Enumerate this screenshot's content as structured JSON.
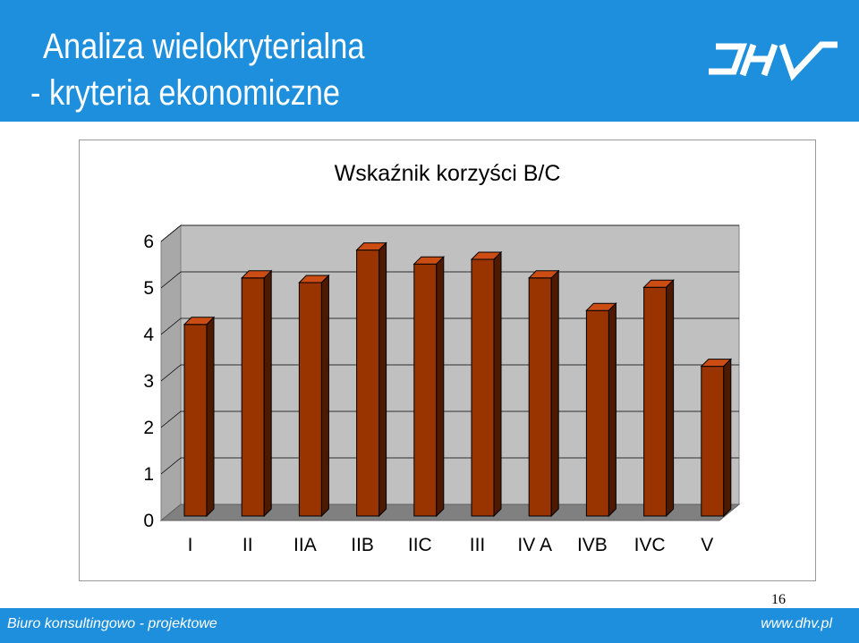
{
  "slide": {
    "title_line1": "Analiza wielokryterialna",
    "title_line2": "- kryteria ekonomiczne",
    "logo_icon": "dhv-logo-icon",
    "page_number": "16",
    "footer_left": "Biuro konsultingowo - projektowe",
    "footer_right": "www.dhv.pl"
  },
  "colors": {
    "header_bg": "#1e8fdc",
    "bar_front": "#993300",
    "bar_top": "#cc4d14",
    "bar_side": "#4d1a00"
  },
  "chart_data": {
    "type": "bar",
    "title": "Wskaźnik korzyści B/C",
    "categories": [
      "I",
      "II",
      "IIA",
      "IIB",
      "IIC",
      "III",
      "IV A",
      "IVB",
      "IVC",
      "V"
    ],
    "values": [
      4.1,
      5.1,
      5.0,
      5.7,
      5.4,
      5.5,
      5.1,
      4.4,
      4.9,
      3.2
    ],
    "ylim": [
      0,
      6
    ],
    "yticks": [
      "0",
      "1",
      "2",
      "3",
      "4",
      "5",
      "6"
    ],
    "grid": true,
    "three_d": true
  }
}
